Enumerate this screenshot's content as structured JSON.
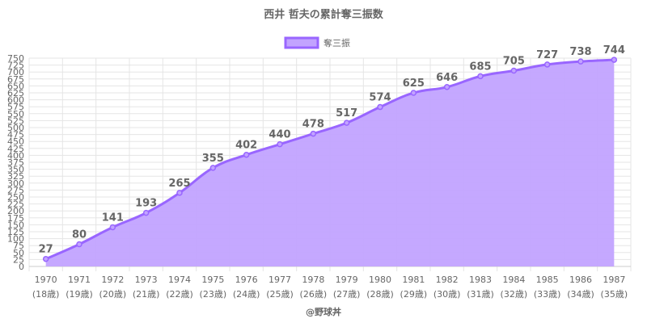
{
  "chart_data": {
    "type": "area",
    "title": "西井 哲夫の累計奪三振数",
    "credit": "@野球丼",
    "legend": {
      "position": "top",
      "label": "奪三振"
    },
    "grid": true,
    "ylim": [
      0,
      750
    ],
    "ytick_step": 25,
    "colors": {
      "line": "#9966ff",
      "fill": "#c2a3ff",
      "grid": "#e5e5e5",
      "text": "#666666"
    },
    "categories": [
      "1970",
      "1971",
      "1972",
      "1973",
      "1974",
      "1975",
      "1976",
      "1977",
      "1978",
      "1979",
      "1980",
      "1981",
      "1982",
      "1983",
      "1984",
      "1985",
      "1986",
      "1987"
    ],
    "age_labels": [
      "(18歳)",
      "(19歳)",
      "(20歳)",
      "(21歳)",
      "(22歳)",
      "(23歳)",
      "(24歳)",
      "(25歳)",
      "(26歳)",
      "(27歳)",
      "(28歳)",
      "(29歳)",
      "(30歳)",
      "(31歳)",
      "(32歳)",
      "(33歳)",
      "(34歳)",
      "(35歳)"
    ],
    "series": [
      {
        "name": "奪三振",
        "values": [
          27,
          80,
          141,
          193,
          265,
          355,
          402,
          440,
          478,
          517,
          574,
          625,
          646,
          685,
          705,
          727,
          738,
          744
        ]
      }
    ]
  }
}
